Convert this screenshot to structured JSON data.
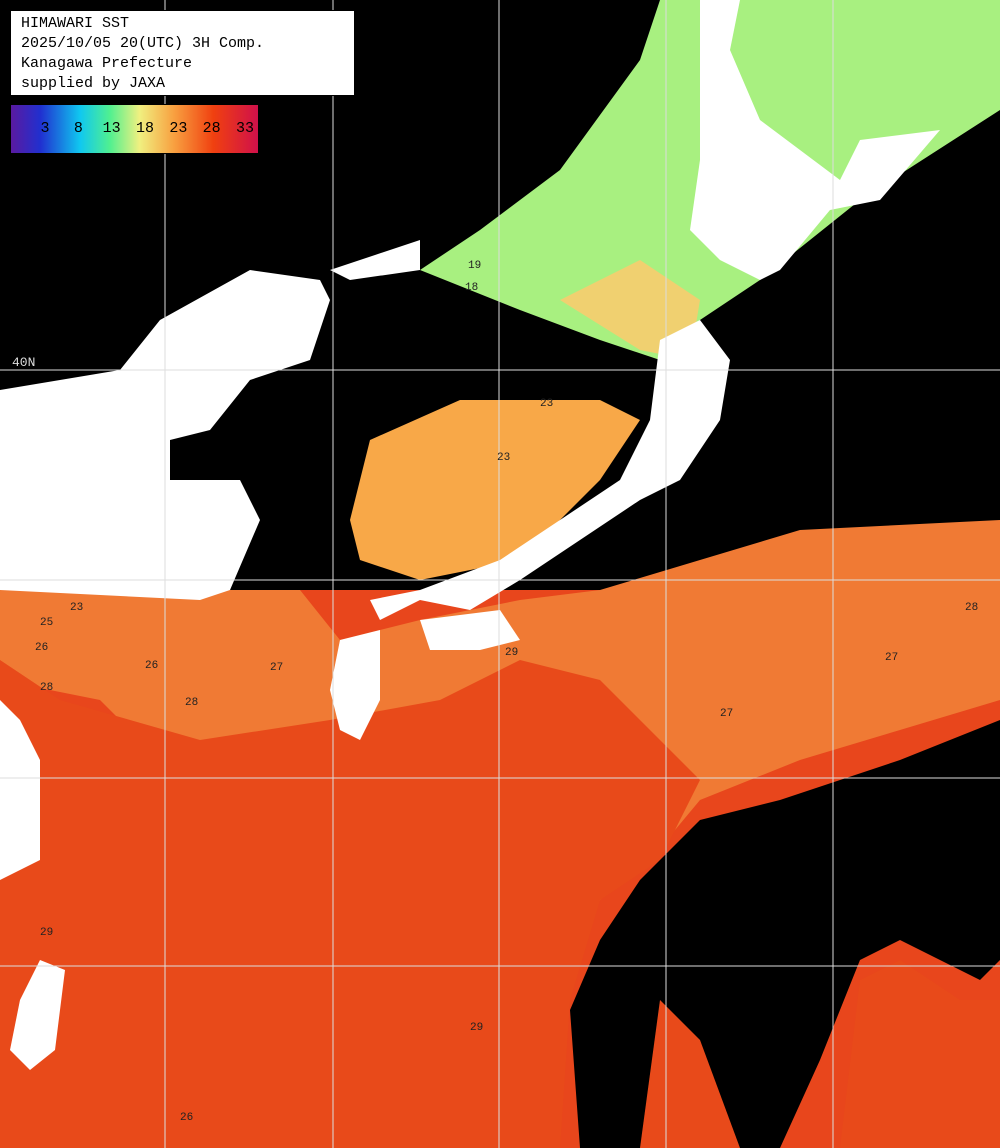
{
  "header": {
    "lines": [
      "HIMAWARI SST",
      "2025/10/05 20(UTC) 3H Comp.",
      "Kanagawa Prefecture",
      "supplied by JAXA"
    ]
  },
  "colorbar": {
    "ticks": [
      "3",
      "8",
      "13",
      "18",
      "23",
      "28",
      "33"
    ]
  },
  "map": {
    "lat_label": "40N",
    "contour_labels": [
      "19",
      "18",
      "23",
      "23",
      "23",
      "25",
      "26",
      "26",
      "27",
      "27",
      "28",
      "28",
      "29",
      "29",
      "29",
      "26",
      "27",
      "28"
    ]
  }
}
